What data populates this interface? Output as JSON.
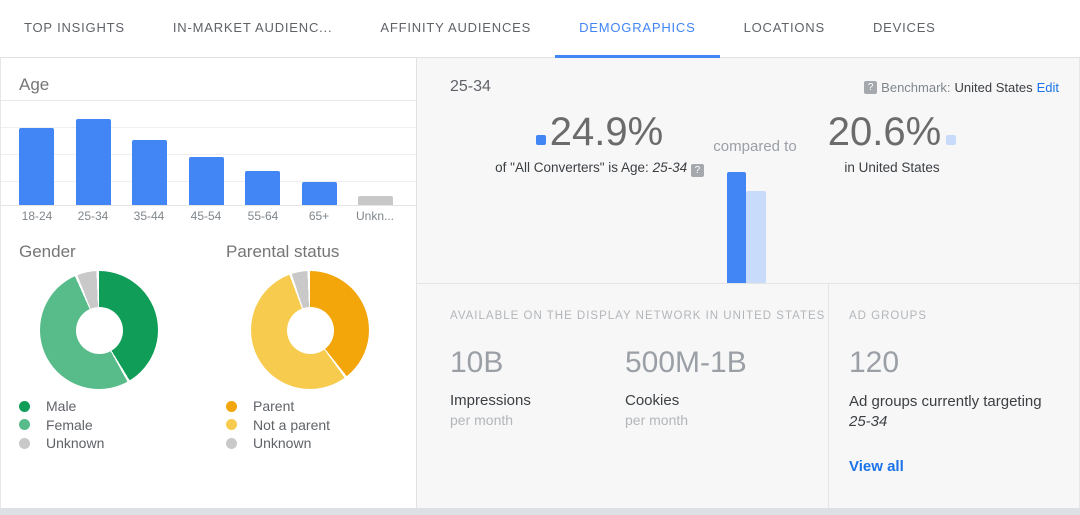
{
  "tabs": [
    "TOP INSIGHTS",
    "IN-MARKET AUDIENC...",
    "AFFINITY AUDIENCES",
    "DEMOGRAPHICS",
    "LOCATIONS",
    "DEVICES"
  ],
  "active_tab": "DEMOGRAPHICS",
  "left": {
    "age_title": "Age",
    "gender_title": "Gender",
    "parental_title": "Parental status"
  },
  "detail": {
    "segment": "25-34",
    "benchmark_label": "Benchmark:",
    "benchmark_value": "United States",
    "edit_link": "Edit",
    "primary_pct": "24.9%",
    "primary_caption_prefix": "of \"All Converters\" is Age:",
    "primary_caption_segment": "25-34",
    "compared_to": "compared to",
    "benchmark_pct": "20.6%",
    "benchmark_caption": "in United States"
  },
  "availability": {
    "header": "AVAILABLE ON THE DISPLAY NETWORK IN UNITED STATES",
    "stats": [
      {
        "value": "10B",
        "label": "Impressions",
        "sub": "per month"
      },
      {
        "value": "500M-1B",
        "label": "Cookies",
        "sub": "per month"
      }
    ]
  },
  "ad_groups": {
    "header": "AD GROUPS",
    "value": "120",
    "caption_line1": "Ad groups currently targeting",
    "caption_line2": "25-34",
    "view_all": "View all"
  },
  "icons": {
    "help_glyph": "?"
  },
  "colors": {
    "accent_blue": "#4285f4",
    "light_blue": "#c9dbfa",
    "link_blue": "#1a73e8",
    "male_green": "#0f9d58",
    "female_green": "#57bb8a",
    "parent_orange": "#f2a60a",
    "not_parent_yellow": "#f7cb4d",
    "unknown_gray": "#c9c9c9"
  },
  "chart_data": [
    {
      "type": "bar",
      "title": "Age",
      "categories": [
        "18-24",
        "25-34",
        "35-44",
        "45-54",
        "55-64",
        "65+",
        "Unknown"
      ],
      "tick_labels": [
        "18-24",
        "25-34",
        "35-44",
        "45-54",
        "55-64",
        "65+",
        "Unkn..."
      ],
      "values": [
        22.3,
        24.9,
        18.8,
        13.9,
        9.9,
        6.7,
        2.6
      ],
      "unit": "% of All Converters",
      "bar_colors": [
        "#4285f4",
        "#4285f4",
        "#4285f4",
        "#4285f4",
        "#4285f4",
        "#4285f4",
        "#c8c8c8"
      ],
      "ylim": [
        0,
        30
      ],
      "grid": true
    },
    {
      "type": "pie",
      "title": "Gender",
      "donut": true,
      "legend_position": "bottom",
      "slices": [
        {
          "label": "Male",
          "value": 42,
          "color": "#0f9d58"
        },
        {
          "label": "Female",
          "value": 52,
          "color": "#57bb8a"
        },
        {
          "label": "Unknown",
          "value": 6,
          "color": "#c9c9c9"
        }
      ]
    },
    {
      "type": "pie",
      "title": "Parental status",
      "donut": true,
      "legend_position": "bottom",
      "slices": [
        {
          "label": "Parent",
          "value": 40,
          "color": "#f2a60a"
        },
        {
          "label": "Not a parent",
          "value": 55,
          "color": "#f7cb4d"
        },
        {
          "label": "Unknown",
          "value": 5,
          "color": "#c9c9c9"
        }
      ]
    },
    {
      "type": "bar",
      "title": "25-34 share compared to benchmark",
      "categories": [
        "All Converters",
        "United States"
      ],
      "values": [
        24.9,
        20.6
      ],
      "unit": "%",
      "bar_colors": [
        "#4285f4",
        "#c9dbfa"
      ]
    }
  ]
}
